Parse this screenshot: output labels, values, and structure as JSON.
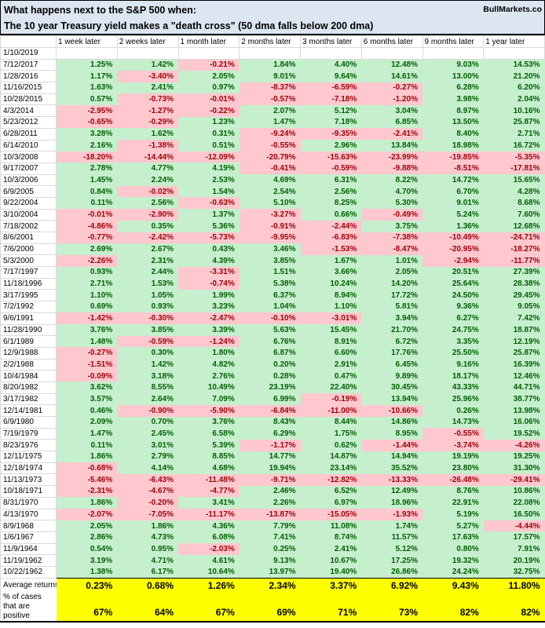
{
  "title": {
    "line1": "What happens next to the S&P 500 when:",
    "line2": "The 10 year Treasury yield makes a \"death cross\" (50 dma falls below 200 dma)",
    "brand": "BullMarkets.co"
  },
  "colors": {
    "title_bg": "#DCE6F1",
    "gridline": "#D9D9D9",
    "positive_bg": "#C6EFCE",
    "positive_text": "#006100",
    "negative_bg": "#FFC7CE",
    "negative_text": "#9C0006",
    "summary_bg": "#FFFF00"
  },
  "chart_data": {
    "type": "table",
    "title": "What happens next to the S&P 500 when: The 10 year Treasury yield makes a \"death cross\" (50 dma falls below 200 dma)",
    "columns": [
      "1 week later",
      "2 weeks later",
      "1 month later",
      "2 months later",
      "3 months later",
      "6 months later",
      "9 months later",
      "1 year later"
    ],
    "rows": [
      {
        "date": "1/10/2019",
        "values": [
          "",
          "",
          "",
          "",
          "",
          "",
          "",
          ""
        ]
      },
      {
        "date": "7/12/2017",
        "values": [
          "1.25%",
          "1.42%",
          "-0.21%",
          "1.84%",
          "4.40%",
          "12.48%",
          "9.03%",
          "14.53%"
        ]
      },
      {
        "date": "1/28/2016",
        "values": [
          "1.17%",
          "-3.40%",
          "2.05%",
          "9.01%",
          "9.64%",
          "14.61%",
          "13.00%",
          "21.20%"
        ]
      },
      {
        "date": "11/16/2015",
        "values": [
          "1.63%",
          "2.41%",
          "0.97%",
          "-8.37%",
          "-6.59%",
          "-0.27%",
          "6.28%",
          "6.20%"
        ]
      },
      {
        "date": "10/28/2015",
        "values": [
          "0.57%",
          "-0.73%",
          "-0.01%",
          "-0.57%",
          "-7.18%",
          "-1.20%",
          "3.98%",
          "2.04%"
        ]
      },
      {
        "date": "4/3/2014",
        "values": [
          "-2.95%",
          "-1.27%",
          "-0.22%",
          "2.07%",
          "5.12%",
          "3.04%",
          "8.97%",
          "10.16%"
        ]
      },
      {
        "date": "5/23/2012",
        "values": [
          "-0.65%",
          "-0.29%",
          "1.23%",
          "1.47%",
          "7.18%",
          "6.85%",
          "13.50%",
          "25.87%"
        ]
      },
      {
        "date": "6/28/2011",
        "values": [
          "3.28%",
          "1.62%",
          "0.31%",
          "-9.24%",
          "-9.35%",
          "-2.41%",
          "8.40%",
          "2.71%"
        ]
      },
      {
        "date": "6/14/2010",
        "values": [
          "2.16%",
          "-1.38%",
          "0.51%",
          "-0.55%",
          "2.96%",
          "13.84%",
          "18.98%",
          "16.72%"
        ]
      },
      {
        "date": "10/3/2008",
        "values": [
          "-18.20%",
          "-14.44%",
          "-12.09%",
          "-20.79%",
          "-15.63%",
          "-23.99%",
          "-19.85%",
          "-5.35%"
        ]
      },
      {
        "date": "9/17/2007",
        "values": [
          "2.78%",
          "4.77%",
          "4.19%",
          "-0.41%",
          "-0.59%",
          "-9.88%",
          "-8.51%",
          "-17.81%"
        ]
      },
      {
        "date": "10/3/2006",
        "values": [
          "1.45%",
          "2.24%",
          "2.53%",
          "4.69%",
          "6.31%",
          "8.22%",
          "14.72%",
          "15.65%"
        ]
      },
      {
        "date": "6/9/2005",
        "values": [
          "0.84%",
          "-0.02%",
          "1.54%",
          "2.54%",
          "2.56%",
          "4.70%",
          "6.70%",
          "4.28%"
        ]
      },
      {
        "date": "9/22/2004",
        "values": [
          "0.11%",
          "2.56%",
          "-0.63%",
          "5.10%",
          "8.25%",
          "5.30%",
          "9.01%",
          "8.68%"
        ]
      },
      {
        "date": "3/10/2004",
        "values": [
          "-0.01%",
          "-2.90%",
          "1.37%",
          "-3.27%",
          "0.66%",
          "-0.49%",
          "5.24%",
          "7.60%"
        ]
      },
      {
        "date": "7/18/2002",
        "values": [
          "-4.86%",
          "0.35%",
          "5.36%",
          "-0.91%",
          "-2.44%",
          "3.75%",
          "1.36%",
          "12.68%"
        ]
      },
      {
        "date": "8/6/2001",
        "values": [
          "-0.77%",
          "-2.42%",
          "-5.73%",
          "-9.95%",
          "-6.83%",
          "-7.38%",
          "-10.49%",
          "-24.71%"
        ]
      },
      {
        "date": "7/6/2000",
        "values": [
          "2.69%",
          "2.67%",
          "0.43%",
          "3.46%",
          "-1.53%",
          "-8.47%",
          "-20.95%",
          "-18.27%"
        ]
      },
      {
        "date": "5/3/2000",
        "values": [
          "-2.26%",
          "2.31%",
          "4.39%",
          "3.85%",
          "1.67%",
          "1.01%",
          "-2.94%",
          "-11.77%"
        ]
      },
      {
        "date": "7/17/1997",
        "values": [
          "0.93%",
          "2.44%",
          "-3.31%",
          "1.51%",
          "3.66%",
          "2.05%",
          "20.51%",
          "27.39%"
        ]
      },
      {
        "date": "11/18/1996",
        "values": [
          "2.71%",
          "1.53%",
          "-0.74%",
          "5.38%",
          "10.24%",
          "14.20%",
          "25.64%",
          "28.38%"
        ]
      },
      {
        "date": "3/17/1995",
        "values": [
          "1.10%",
          "1.05%",
          "1.99%",
          "6.37%",
          "8.94%",
          "17.72%",
          "24.50%",
          "29.45%"
        ]
      },
      {
        "date": "7/2/1992",
        "values": [
          "0.69%",
          "0.93%",
          "3.23%",
          "1.04%",
          "1.10%",
          "5.81%",
          "9.36%",
          "9.05%"
        ]
      },
      {
        "date": "9/6/1991",
        "values": [
          "-1.42%",
          "-0.30%",
          "-2.47%",
          "-0.10%",
          "-3.01%",
          "3.94%",
          "6.27%",
          "7.42%"
        ]
      },
      {
        "date": "11/28/1990",
        "values": [
          "3.76%",
          "3.85%",
          "3.39%",
          "5.63%",
          "15.45%",
          "21.70%",
          "24.75%",
          "18.87%"
        ]
      },
      {
        "date": "6/1/1989",
        "values": [
          "1.48%",
          "-0.59%",
          "-1.24%",
          "6.76%",
          "8.91%",
          "6.72%",
          "3.35%",
          "12.19%"
        ]
      },
      {
        "date": "12/9/1988",
        "values": [
          "-0.27%",
          "0.30%",
          "1.80%",
          "6.87%",
          "6.60%",
          "17.76%",
          "25.50%",
          "25.87%"
        ]
      },
      {
        "date": "2/2/1988",
        "values": [
          "-1.51%",
          "1.42%",
          "4.82%",
          "0.20%",
          "2.91%",
          "6.45%",
          "9.16%",
          "16.39%"
        ]
      },
      {
        "date": "10/4/1984",
        "values": [
          "-0.09%",
          "3.18%",
          "2.76%",
          "0.28%",
          "0.47%",
          "9.89%",
          "18.17%",
          "12.46%"
        ]
      },
      {
        "date": "8/20/1982",
        "values": [
          "3.62%",
          "8.55%",
          "10.49%",
          "23.19%",
          "22.40%",
          "30.45%",
          "43.33%",
          "44.71%"
        ]
      },
      {
        "date": "3/17/1982",
        "values": [
          "3.57%",
          "2.64%",
          "7.09%",
          "6.99%",
          "-0.19%",
          "13.94%",
          "25.96%",
          "38.77%"
        ]
      },
      {
        "date": "12/14/1981",
        "values": [
          "0.46%",
          "-0.90%",
          "-5.90%",
          "-6.84%",
          "-11.00%",
          "-10.66%",
          "0.26%",
          "13.98%"
        ]
      },
      {
        "date": "6/9/1980",
        "values": [
          "2.09%",
          "0.70%",
          "3.76%",
          "8.43%",
          "8.44%",
          "14.86%",
          "14.73%",
          "16.06%"
        ]
      },
      {
        "date": "7/19/1979",
        "values": [
          "1.47%",
          "2.45%",
          "6.58%",
          "6.29%",
          "1.75%",
          "8.95%",
          "-0.55%",
          "19.52%"
        ]
      },
      {
        "date": "8/23/1976",
        "values": [
          "0.11%",
          "3.01%",
          "5.39%",
          "-1.17%",
          "0.62%",
          "-1.44%",
          "-3.74%",
          "-4.26%"
        ]
      },
      {
        "date": "12/11/1975",
        "values": [
          "1.86%",
          "2.79%",
          "8.85%",
          "14.77%",
          "14.87%",
          "14.94%",
          "19.19%",
          "19.25%"
        ]
      },
      {
        "date": "12/18/1974",
        "values": [
          "-0.68%",
          "4.14%",
          "4.68%",
          "19.94%",
          "23.14%",
          "35.52%",
          "23.80%",
          "31.30%"
        ]
      },
      {
        "date": "11/13/1973",
        "values": [
          "-5.46%",
          "-6.43%",
          "-11.48%",
          "-9.71%",
          "-12.82%",
          "-13.33%",
          "-26.48%",
          "-29.41%"
        ]
      },
      {
        "date": "10/18/1971",
        "values": [
          "-2.31%",
          "-4.67%",
          "-4.77%",
          "2.46%",
          "6.52%",
          "12.49%",
          "8.76%",
          "10.86%"
        ]
      },
      {
        "date": "8/31/1970",
        "values": [
          "1.86%",
          "-0.20%",
          "3.41%",
          "2.26%",
          "6.97%",
          "18.96%",
          "22.91%",
          "22.08%"
        ]
      },
      {
        "date": "4/13/1970",
        "values": [
          "-2.07%",
          "-7.05%",
          "-11.17%",
          "-13.87%",
          "-15.05%",
          "-1.93%",
          "5.19%",
          "16.50%"
        ]
      },
      {
        "date": "8/9/1968",
        "values": [
          "2.05%",
          "1.86%",
          "4.36%",
          "7.79%",
          "11.08%",
          "1.74%",
          "5.27%",
          "-4.44%"
        ]
      },
      {
        "date": "1/6/1967",
        "values": [
          "2.86%",
          "4.73%",
          "6.08%",
          "7.41%",
          "8.74%",
          "11.57%",
          "17.63%",
          "17.57%"
        ]
      },
      {
        "date": "11/9/1964",
        "values": [
          "0.54%",
          "0.95%",
          "-2.03%",
          "0.25%",
          "2.41%",
          "5.12%",
          "0.80%",
          "7.91%"
        ]
      },
      {
        "date": "11/19/1962",
        "values": [
          "3.19%",
          "4.71%",
          "4.61%",
          "9.13%",
          "10.67%",
          "17.25%",
          "19.32%",
          "20.19%"
        ]
      },
      {
        "date": "10/22/1962",
        "values": [
          "1.38%",
          "6.17%",
          "10.64%",
          "13.97%",
          "19.40%",
          "26.86%",
          "24.24%",
          "32.75%"
        ]
      }
    ],
    "summary": {
      "average_label": "Average returns",
      "average_values": [
        "0.23%",
        "0.68%",
        "1.26%",
        "2.34%",
        "3.37%",
        "6.92%",
        "9.43%",
        "11.80%"
      ],
      "positive_label": "% of cases that are positive",
      "positive_values": [
        "67%",
        "64%",
        "67%",
        "69%",
        "71%",
        "73%",
        "82%",
        "82%"
      ]
    }
  }
}
